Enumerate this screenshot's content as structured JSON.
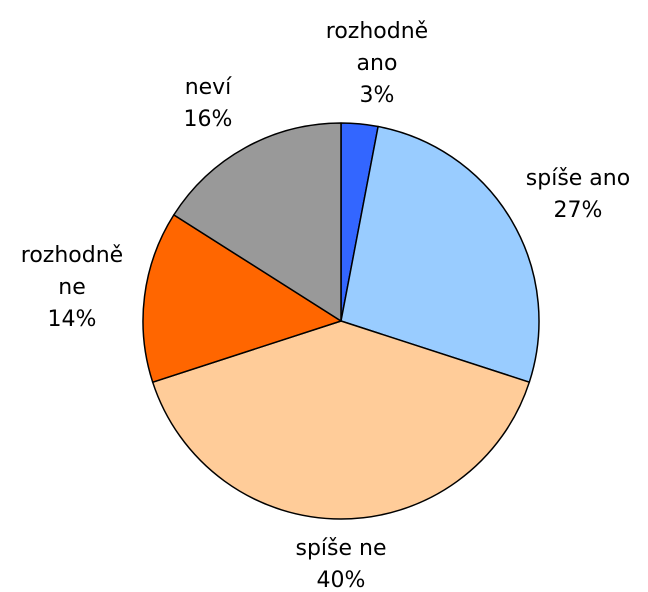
{
  "chart_data": {
    "type": "pie",
    "categories": [
      "rozhodně ano",
      "spíše ano",
      "spíše ne",
      "rozhodně ne",
      "neví"
    ],
    "values": [
      3,
      27,
      40,
      14,
      16
    ],
    "value_labels": [
      "3%",
      "27%",
      "40%",
      "14%",
      "16%"
    ],
    "colors": [
      "#3366ff",
      "#99ccff",
      "#ffcc99",
      "#ff6600",
      "#999999"
    ]
  }
}
